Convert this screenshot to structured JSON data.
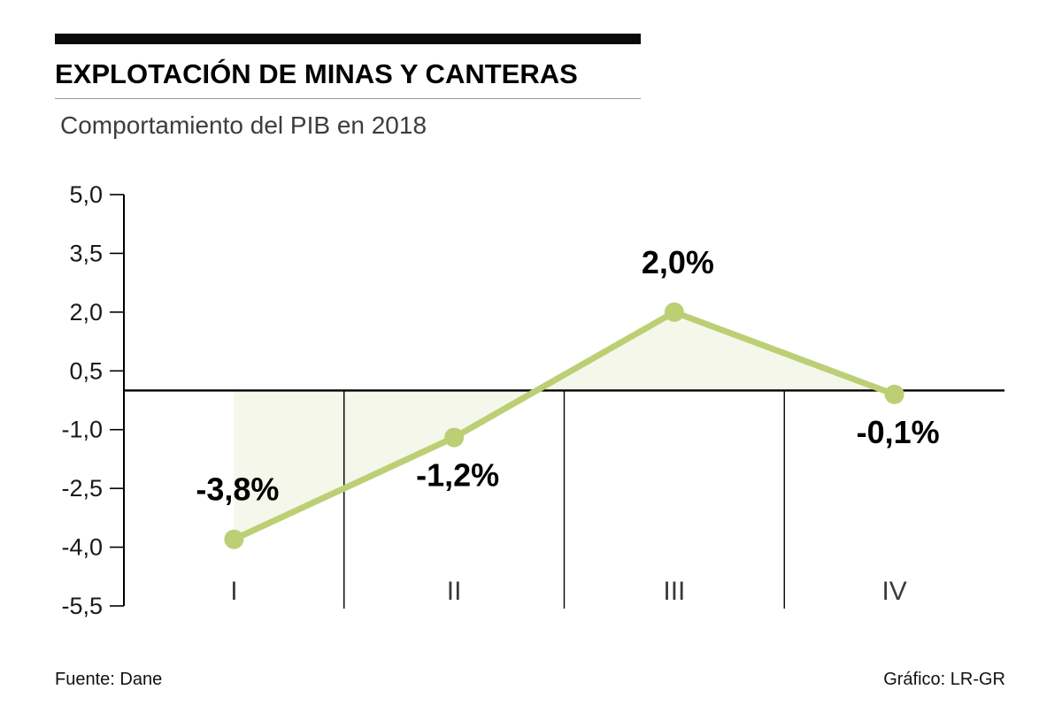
{
  "header": {
    "title": "EXPLOTACIÓN DE MINAS Y CANTERAS",
    "subtitle": "Comportamiento del PIB en 2018"
  },
  "footer": {
    "source": "Fuente: Dane",
    "credit": "Gráfico: LR-GR"
  },
  "colors": {
    "line": "#bccf75",
    "marker": "#bccf75",
    "area_fill": "#bccf75",
    "area_opacity": "0.16",
    "axis": "#000000",
    "category_text": "#3a3a3a",
    "label_text": "#000000"
  },
  "chart_data": {
    "type": "line",
    "title": "EXPLOTACIÓN DE MINAS Y CANTERAS",
    "subtitle": "Comportamiento del PIB en 2018",
    "categories": [
      "I",
      "II",
      "III",
      "IV"
    ],
    "values": [
      -3.8,
      -1.2,
      2.0,
      -0.1
    ],
    "point_labels": [
      "-3,8%",
      "-1,2%",
      "2,0%",
      "-0,1%"
    ],
    "label_placement": [
      "above",
      "below",
      "above",
      "below"
    ],
    "xlabel": "",
    "ylabel": "",
    "ylim": [
      -5.5,
      5.0
    ],
    "yticks": [
      5.0,
      3.5,
      2.0,
      0.5,
      -1.0,
      -2.5,
      -4.0,
      -5.5
    ],
    "ytick_labels": [
      "5,0",
      "3,5",
      "2,0",
      "0,5",
      "-1,0",
      "-2,5",
      "-4,0",
      "-5,5"
    ],
    "baseline": 0,
    "area_to_baseline": true,
    "grid": false,
    "legend": false
  }
}
